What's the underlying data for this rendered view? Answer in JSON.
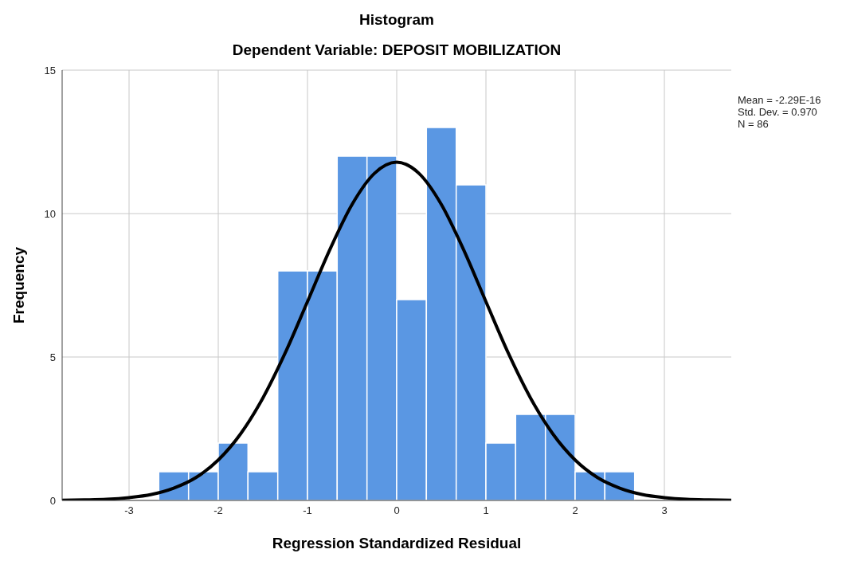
{
  "chart_data": {
    "type": "histogram",
    "title": "Histogram",
    "subtitle": "Dependent Variable: DEPOSIT MOBILIZATION",
    "xlabel": "Regression Standardized Residual",
    "ylabel": "Frequency",
    "bins": [
      -2.667,
      -2.333,
      -2,
      -1.667,
      -1.333,
      -1,
      -0.667,
      -0.333,
      0,
      0.333,
      0.667,
      1,
      1.333,
      1.667,
      2,
      2.333,
      2.667
    ],
    "values": [
      1,
      1,
      2,
      1,
      8,
      8,
      12,
      12,
      7,
      13,
      11,
      2,
      3,
      3,
      1,
      1
    ],
    "color": "#5a97e3",
    "series": [
      {
        "type": "line",
        "color": "#000000",
        "x": [
          -3.75,
          -3.5,
          -3.25,
          -3,
          -2.75,
          -2.5,
          -2.25,
          -2,
          -1.75,
          -1.5,
          -1.25,
          -1,
          -0.75,
          -0.5,
          -0.25,
          0,
          0.25,
          0.5,
          0.75,
          1,
          1.25,
          1.5,
          1.75,
          2,
          2.25,
          2.5,
          2.75,
          3,
          3.25,
          3.5,
          3.75
        ],
        "values": [
          0.01,
          0.02,
          0.04,
          0.1,
          0.21,
          0.43,
          0.8,
          1.41,
          2.32,
          3.57,
          5.14,
          6.93,
          8.74,
          10.32,
          11.4,
          11.79,
          11.4,
          10.32,
          8.74,
          6.93,
          5.14,
          3.57,
          2.32,
          1.41,
          0.8,
          0.43,
          0.21,
          0.1,
          0.04,
          0.02,
          0.01
        ]
      }
    ],
    "xlim": [
      -3.75,
      3.75
    ],
    "xticks": [
      -3,
      -2,
      -1,
      0,
      1,
      2,
      3
    ],
    "ylim": [
      0,
      15
    ],
    "yticks": [
      0,
      5,
      10,
      15
    ],
    "grid": true,
    "annotations": [
      "Mean = -2.29E-16",
      "Std. Dev. = 0.970",
      "N = 86"
    ]
  }
}
